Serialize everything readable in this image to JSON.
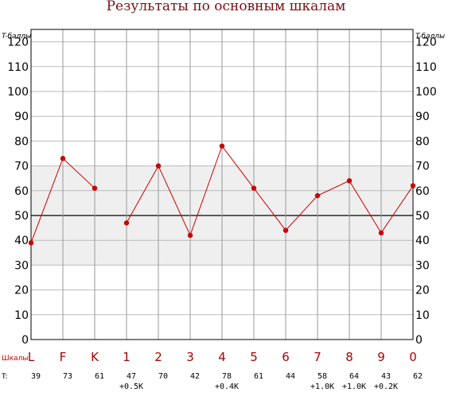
{
  "colors": {
    "series": "#cc0000",
    "title": "#7a1010",
    "band": "#efefef",
    "grid": "#000000",
    "scale_label": "#cc0000",
    "category_text": "#aa0000"
  },
  "chart_data": {
    "type": "line",
    "title": "Результаты по основным шкалам",
    "ylabel": "T-баллы",
    "xlabel": "Шкалы",
    "ylim": [
      0,
      125
    ],
    "yticks": [
      0,
      10,
      20,
      30,
      40,
      50,
      60,
      70,
      80,
      90,
      100,
      110,
      120
    ],
    "grid": true,
    "normal_band": [
      30,
      70
    ],
    "reference_line": 50,
    "categories": [
      "L",
      "F",
      "K",
      "1",
      "2",
      "3",
      "4",
      "5",
      "6",
      "7",
      "8",
      "9",
      "0"
    ],
    "series": [
      {
        "values": [
          39,
          73,
          61,
          47,
          70,
          42,
          78,
          61,
          44,
          58,
          64,
          43,
          62
        ],
        "segments": [
          [
            0,
            2
          ],
          [
            3,
            12
          ]
        ]
      }
    ],
    "value_row_label": "T:",
    "value_labels": [
      "39",
      "73",
      "61",
      "47",
      "70",
      "42",
      "78",
      "61",
      "44",
      "58",
      "64",
      "43",
      "62"
    ],
    "corrections": [
      "",
      "",
      "",
      "+0.5K",
      "",
      "",
      "+0.4K",
      "",
      "",
      "+1.0K",
      "+1.0K",
      "+0.2K",
      ""
    ]
  }
}
